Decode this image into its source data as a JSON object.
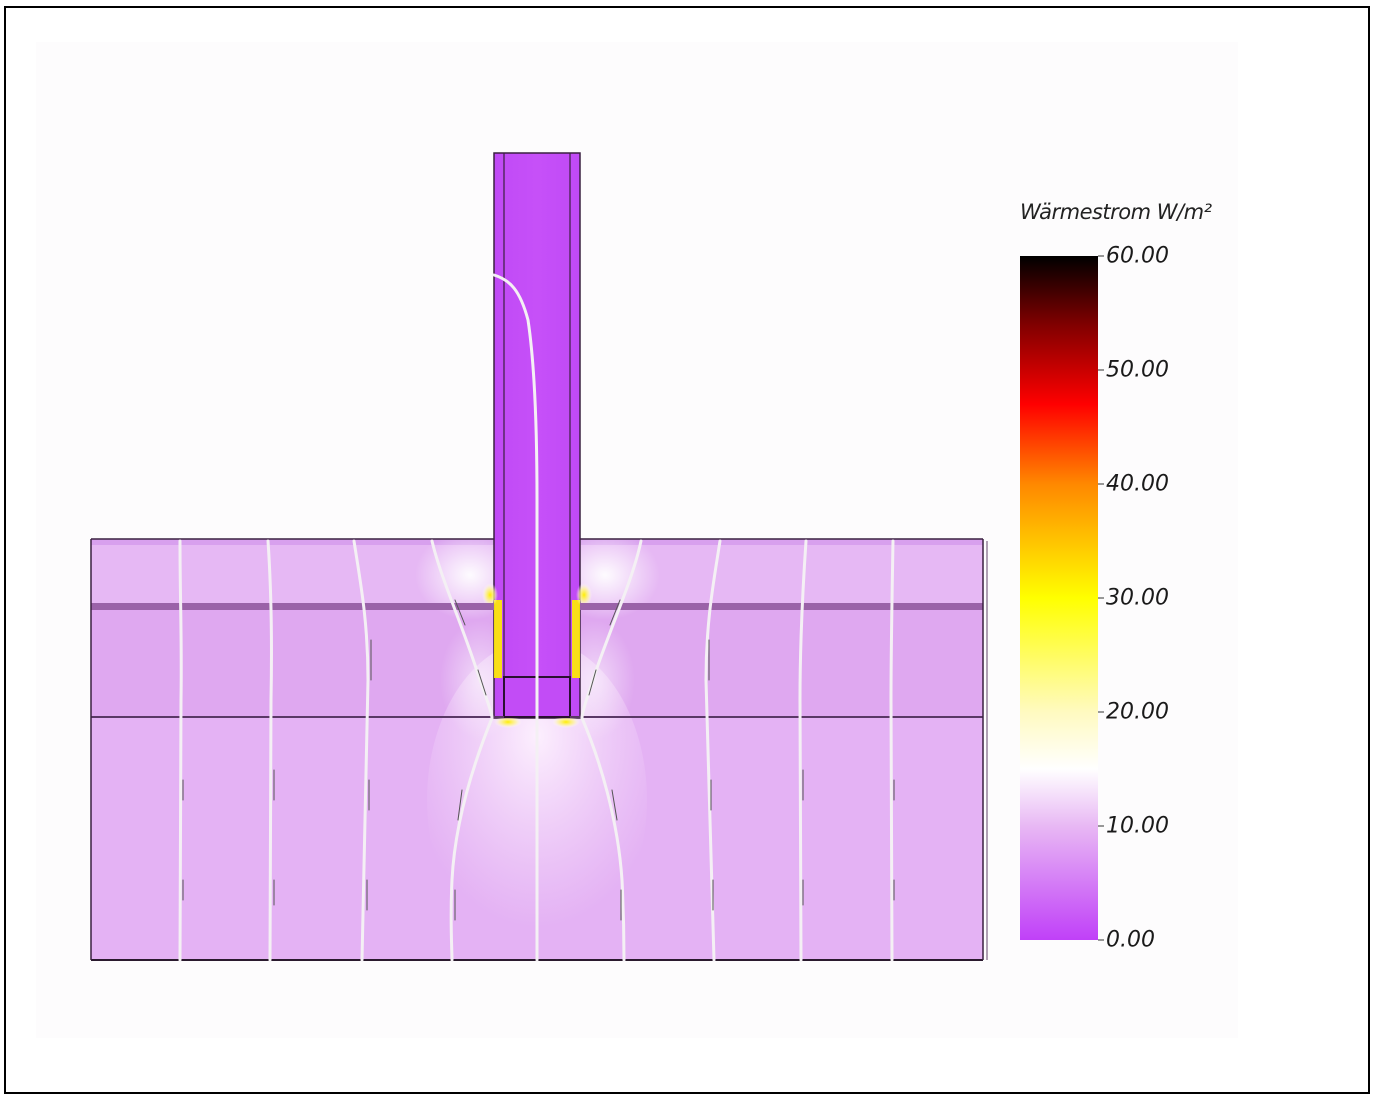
{
  "legend": {
    "title": "Wärmestrom W/m²",
    "min": 0.0,
    "max": 60.0,
    "ticks": [
      "60.00",
      "50.00",
      "40.00",
      "30.00",
      "20.00",
      "10.00",
      "0.00"
    ],
    "tick_values": [
      60,
      50,
      40,
      30,
      20,
      10,
      0
    ],
    "gradient_stops": [
      {
        "value": 0,
        "color": "#c040f8"
      },
      {
        "value": 10,
        "color": "#e8b8f4"
      },
      {
        "value": 15,
        "color": "#ffffff"
      },
      {
        "value": 20,
        "color": "#fffac0"
      },
      {
        "value": 30,
        "color": "#ffff00"
      },
      {
        "value": 40,
        "color": "#ff8800"
      },
      {
        "value": 47,
        "color": "#ff0000"
      },
      {
        "value": 54,
        "color": "#800000"
      },
      {
        "value": 60,
        "color": "#000000"
      }
    ]
  },
  "colors": {
    "slab_fill": "#e2b0f2",
    "ground_fill": "#e6b4f4",
    "column_fill": "#c24cf6",
    "membrane_line": "#8a5a94",
    "outline": "#2a1a2e",
    "flow_line": "#f4f0f4",
    "hotspot": "#ffee00"
  }
}
